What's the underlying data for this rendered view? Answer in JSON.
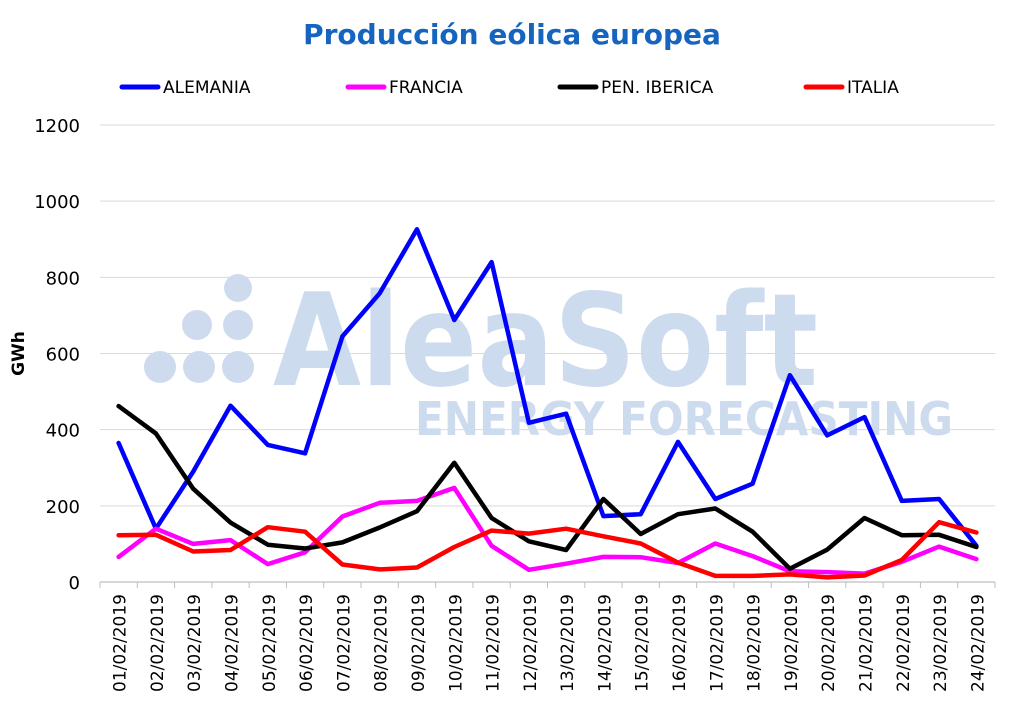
{
  "chart_data": {
    "type": "line",
    "title": "Producción eólica europea",
    "xlabel": "",
    "ylabel": "GWh",
    "ylim": [
      0,
      1200
    ],
    "yticks": [
      0,
      200,
      400,
      600,
      800,
      1000,
      1200
    ],
    "grid": true,
    "legend_position": "top",
    "watermark": {
      "brand": "AleaSoft",
      "tagline": "ENERGY FORECASTING"
    },
    "categories": [
      "01/02/2019",
      "02/02/2019",
      "03/02/2019",
      "04/02/2019",
      "05/02/2019",
      "06/02/2019",
      "07/02/2019",
      "08/02/2019",
      "09/02/2019",
      "10/02/2019",
      "11/02/2019",
      "12/02/2019",
      "13/02/2019",
      "14/02/2019",
      "15/02/2019",
      "16/02/2019",
      "17/02/2019",
      "18/02/2019",
      "19/02/2019",
      "20/02/2019",
      "21/02/2019",
      "22/02/2019",
      "23/02/2019",
      "24/02/2019"
    ],
    "series": [
      {
        "name": "ALEMANIA",
        "color": "#0000ff",
        "values": [
          365,
          140,
          290,
          463,
          360,
          338,
          645,
          758,
          926,
          688,
          840,
          418,
          442,
          173,
          178,
          368,
          218,
          258,
          543,
          385,
          433,
          213,
          218,
          95
        ]
      },
      {
        "name": "FRANCIA",
        "color": "#ff00ff",
        "values": [
          66,
          140,
          100,
          110,
          47,
          78,
          172,
          208,
          213,
          247,
          95,
          32,
          48,
          66,
          65,
          50,
          101,
          68,
          28,
          26,
          22,
          53,
          93,
          60
        ]
      },
      {
        "name": "PEN. IBERICA",
        "color": "#000000",
        "values": [
          462,
          390,
          245,
          156,
          98,
          88,
          104,
          143,
          186,
          313,
          168,
          107,
          84,
          218,
          126,
          178,
          193,
          132,
          35,
          85,
          168,
          123,
          124,
          92
        ]
      },
      {
        "name": "ITALIA",
        "color": "#ff0000",
        "values": [
          123,
          124,
          80,
          84,
          144,
          132,
          46,
          33,
          38,
          92,
          135,
          127,
          140,
          120,
          101,
          51,
          16,
          16,
          20,
          12,
          17,
          58,
          157,
          130
        ]
      }
    ]
  }
}
